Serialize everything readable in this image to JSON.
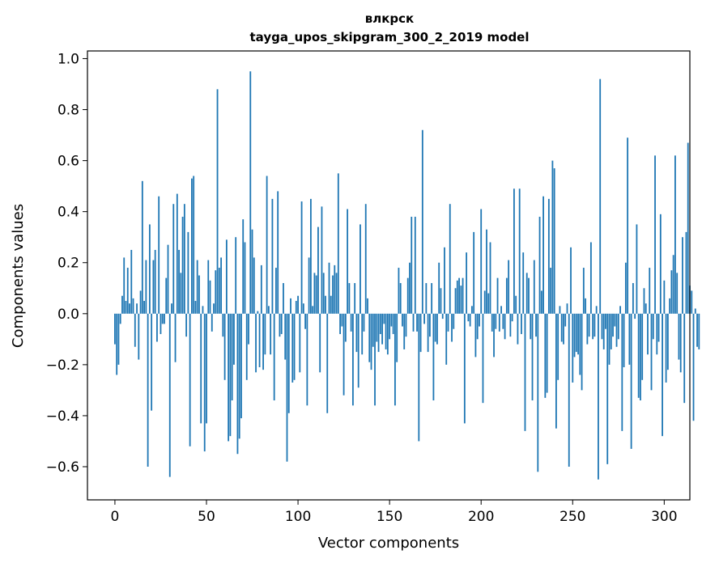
{
  "chart_data": {
    "type": "bar",
    "title": "влкрск",
    "subtitle": "tayga_upos_skipgram_300_2_2019 model",
    "xlabel": "Vector components",
    "ylabel": "Components values",
    "xlim": [
      -15,
      314
    ],
    "ylim": [
      -0.73,
      1.03
    ],
    "xticks": [
      0,
      50,
      100,
      150,
      200,
      250,
      300
    ],
    "xtick_labels": [
      "0",
      "50",
      "100",
      "150",
      "200",
      "250",
      "300"
    ],
    "yticks": [
      -0.6,
      -0.4,
      -0.2,
      0.0,
      0.2,
      0.4,
      0.6,
      0.8,
      1.0
    ],
    "ytick_labels": [
      "−0.6",
      "−0.4",
      "−0.2",
      "0.0",
      "0.2",
      "0.4",
      "0.6",
      "0.8",
      "1.0"
    ],
    "bar_color": "#1f77b4",
    "grid": false,
    "x_start": 0,
    "values": [
      -0.12,
      -0.24,
      -0.2,
      -0.04,
      0.07,
      0.22,
      0.05,
      0.18,
      0.04,
      0.25,
      0.06,
      -0.13,
      0.04,
      -0.18,
      0.09,
      0.52,
      0.05,
      0.21,
      -0.6,
      0.35,
      -0.38,
      0.21,
      0.25,
      -0.11,
      0.46,
      -0.08,
      -0.04,
      -0.04,
      0.14,
      0.27,
      -0.64,
      0.04,
      0.43,
      -0.19,
      0.47,
      0.25,
      0.16,
      0.38,
      0.43,
      -0.09,
      0.32,
      -0.52,
      0.53,
      0.54,
      0.05,
      0.21,
      0.15,
      -0.43,
      0.03,
      -0.54,
      -0.43,
      0.21,
      0.13,
      -0.07,
      0.04,
      0.17,
      0.88,
      0.18,
      0.22,
      -0.09,
      -0.26,
      0.29,
      -0.5,
      -0.48,
      -0.34,
      -0.2,
      0.3,
      -0.55,
      -0.49,
      -0.41,
      0.37,
      0.28,
      -0.26,
      -0.12,
      0.95,
      0.33,
      0.22,
      -0.23,
      0.01,
      -0.21,
      0.19,
      -0.22,
      -0.16,
      0.54,
      0.03,
      -0.16,
      0.45,
      -0.34,
      0.18,
      0.48,
      -0.09,
      -0.08,
      0.12,
      -0.18,
      -0.58,
      -0.39,
      0.06,
      -0.27,
      -0.26,
      0.05,
      0.07,
      -0.23,
      0.44,
      0.04,
      -0.06,
      -0.36,
      0.22,
      0.45,
      0.03,
      0.16,
      0.15,
      0.34,
      -0.23,
      0.42,
      0.16,
      0.07,
      -0.39,
      0.2,
      0.07,
      0.15,
      0.19,
      0.16,
      0.55,
      -0.08,
      -0.05,
      -0.32,
      -0.11,
      0.41,
      0.12,
      -0.07,
      -0.36,
      0.12,
      -0.15,
      -0.29,
      0.35,
      -0.16,
      -0.07,
      0.43,
      0.06,
      -0.19,
      -0.22,
      -0.13,
      -0.36,
      -0.11,
      -0.15,
      -0.08,
      -0.12,
      -0.04,
      -0.14,
      -0.16,
      -0.1,
      -0.05,
      -0.08,
      -0.36,
      -0.19,
      0.18,
      0.12,
      -0.05,
      -0.14,
      -0.09,
      0.14,
      0.2,
      0.38,
      -0.07,
      0.38,
      -0.07,
      -0.5,
      -0.15,
      0.72,
      -0.04,
      0.12,
      -0.15,
      -0.09,
      0.12,
      -0.34,
      -0.11,
      -0.12,
      0.2,
      0.1,
      -0.02,
      0.26,
      -0.2,
      -0.07,
      0.43,
      -0.11,
      -0.06,
      0.1,
      0.13,
      0.14,
      0.11,
      0.14,
      -0.43,
      0.24,
      -0.03,
      -0.05,
      0.03,
      0.32,
      -0.17,
      -0.1,
      -0.05,
      0.41,
      -0.35,
      0.09,
      0.33,
      0.08,
      0.28,
      -0.07,
      -0.17,
      -0.06,
      0.14,
      -0.07,
      0.03,
      -0.06,
      -0.1,
      0.14,
      0.21,
      -0.09,
      -0.03,
      0.49,
      0.07,
      -0.12,
      0.49,
      -0.08,
      0.24,
      -0.46,
      0.16,
      0.14,
      -0.1,
      -0.34,
      0.21,
      -0.09,
      -0.62,
      0.38,
      0.09,
      0.46,
      -0.33,
      -0.31,
      0.45,
      0.18,
      0.6,
      0.57,
      -0.45,
      -0.26,
      0.03,
      -0.11,
      -0.12,
      -0.05,
      0.04,
      -0.6,
      0.26,
      -0.27,
      -0.17,
      -0.15,
      -0.16,
      -0.24,
      -0.3,
      0.18,
      0.06,
      -0.12,
      -0.09,
      0.28,
      -0.1,
      -0.09,
      0.03,
      -0.65,
      0.92,
      -0.1,
      -0.14,
      -0.06,
      -0.59,
      -0.2,
      -0.14,
      -0.09,
      -0.05,
      -0.13,
      -0.1,
      0.03,
      -0.46,
      -0.21,
      0.2,
      0.69,
      -0.2,
      -0.53,
      0.12,
      -0.02,
      0.35,
      -0.33,
      -0.34,
      -0.26,
      0.1,
      0.04,
      -0.16,
      0.18,
      -0.3,
      -0.1,
      0.62,
      -0.16,
      -0.11,
      0.39,
      -0.48,
      0.13,
      -0.27,
      -0.22,
      0.06,
      0.17,
      0.23,
      0.62,
      0.16,
      -0.18,
      -0.23,
      0.3,
      -0.35,
      0.32,
      0.67,
      0.11,
      0.09,
      -0.42,
      0.02,
      -0.13,
      -0.14
    ]
  }
}
